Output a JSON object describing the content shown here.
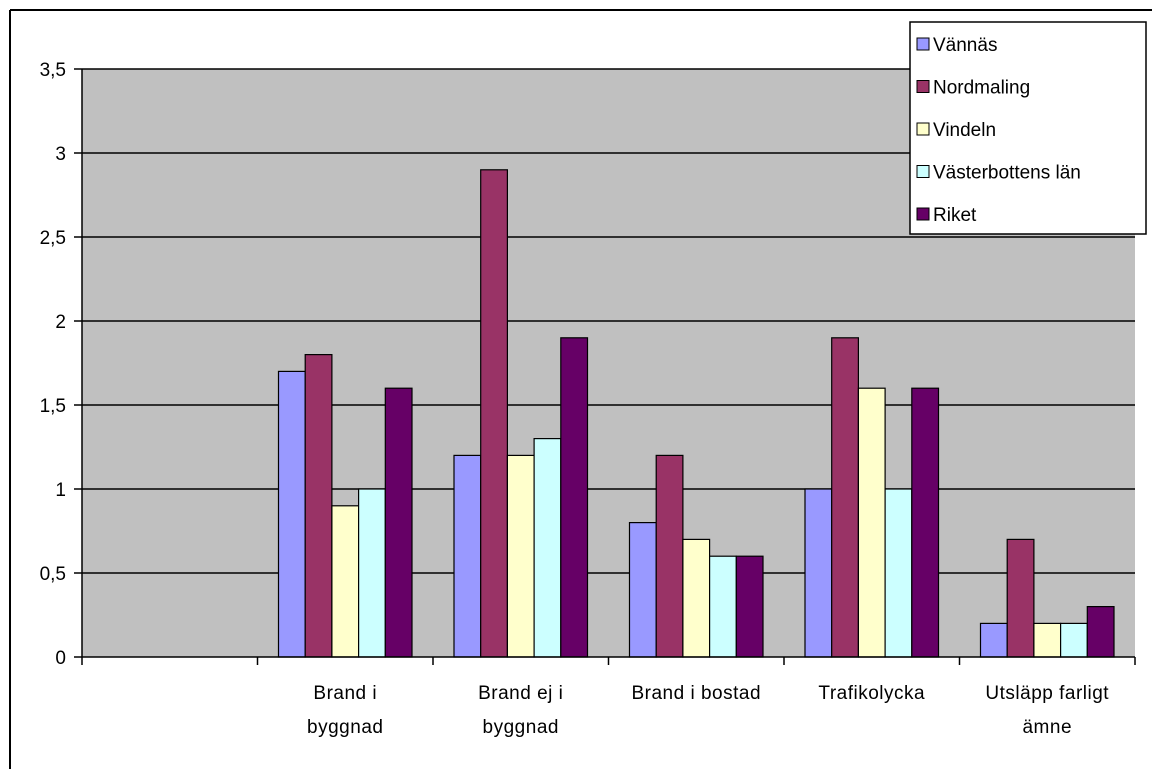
{
  "chart_data": {
    "type": "bar",
    "categories": [
      "",
      "Brand i byggnad",
      "Brand ej i byggnad",
      "Brand i bostad",
      "Trafikolycka",
      "Utsläpp farligt ämne"
    ],
    "category_lines": [
      [],
      [
        "Brand i",
        "byggnad"
      ],
      [
        "Brand ej i",
        "byggnad"
      ],
      [
        "Brand i bostad"
      ],
      [
        "Trafikolycka"
      ],
      [
        "Utsläpp farligt",
        "ämne"
      ]
    ],
    "series": [
      {
        "name": "Vännäs",
        "color": "#9999ff",
        "values": [
          null,
          1.7,
          1.2,
          0.8,
          1.0,
          0.2
        ]
      },
      {
        "name": "Nordmaling",
        "color": "#993366",
        "values": [
          null,
          1.8,
          2.9,
          1.2,
          1.9,
          0.7
        ]
      },
      {
        "name": "Vindeln",
        "color": "#ffffcc",
        "values": [
          null,
          0.9,
          1.2,
          0.7,
          1.6,
          0.2
        ]
      },
      {
        "name": "Västerbottens län",
        "color": "#ccffff",
        "values": [
          null,
          1.0,
          1.3,
          0.6,
          1.0,
          0.2
        ]
      },
      {
        "name": "Riket",
        "color": "#660066",
        "values": [
          null,
          1.6,
          1.9,
          0.6,
          1.6,
          0.3
        ]
      }
    ],
    "y_ticks": [
      "0",
      "0,5",
      "1",
      "1,5",
      "2",
      "2,5",
      "3",
      "3,5"
    ],
    "ylim": [
      0,
      3.5
    ],
    "y_step": 0.5,
    "grid": true,
    "legend_position": "top-right",
    "plot_background": "#c0c0c0"
  }
}
